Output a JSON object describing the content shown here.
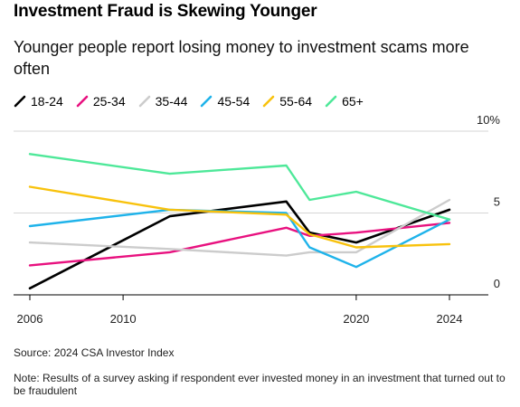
{
  "title": "Investment Fraud is Skewing Younger",
  "subtitle": "Younger people report losing money to investment scams more often",
  "source": "Source: 2024 CSA Investor Index",
  "note": "Note: Results of a survey asking if respondent ever invested money in an investment that turned out to be fraudulent",
  "chart_data": {
    "type": "line",
    "x": [
      2006,
      2012,
      2017,
      2018,
      2020,
      2024
    ],
    "x_ticks": [
      "2006",
      "2010",
      "2020",
      "2024"
    ],
    "x_tick_values": [
      2006,
      2010,
      2020,
      2024
    ],
    "xlim": [
      2006,
      2024
    ],
    "y_ticks": [
      "10%",
      "5",
      "0"
    ],
    "y_tick_values": [
      10,
      5,
      0
    ],
    "ylim": [
      0,
      10
    ],
    "grid": true,
    "legend_position": "top-left",
    "series": [
      {
        "name": "18-24",
        "color": "#000000",
        "values": [
          0.4,
          4.8,
          5.7,
          3.8,
          3.2,
          5.2
        ]
      },
      {
        "name": "25-34",
        "color": "#e8117f",
        "values": [
          1.8,
          2.6,
          4.1,
          3.6,
          3.8,
          4.4
        ]
      },
      {
        "name": "35-44",
        "color": "#cccccc",
        "values": [
          3.2,
          2.8,
          2.4,
          2.6,
          2.6,
          5.8
        ]
      },
      {
        "name": "45-54",
        "color": "#1fb3ea",
        "values": [
          4.2,
          5.2,
          5.0,
          2.9,
          1.7,
          4.6
        ]
      },
      {
        "name": "55-64",
        "color": "#f8c20d",
        "values": [
          6.6,
          5.2,
          4.9,
          3.7,
          2.9,
          3.1
        ]
      },
      {
        "name": "65+",
        "color": "#4ee899",
        "values": [
          8.6,
          7.4,
          7.9,
          5.8,
          6.3,
          4.6
        ]
      }
    ]
  }
}
